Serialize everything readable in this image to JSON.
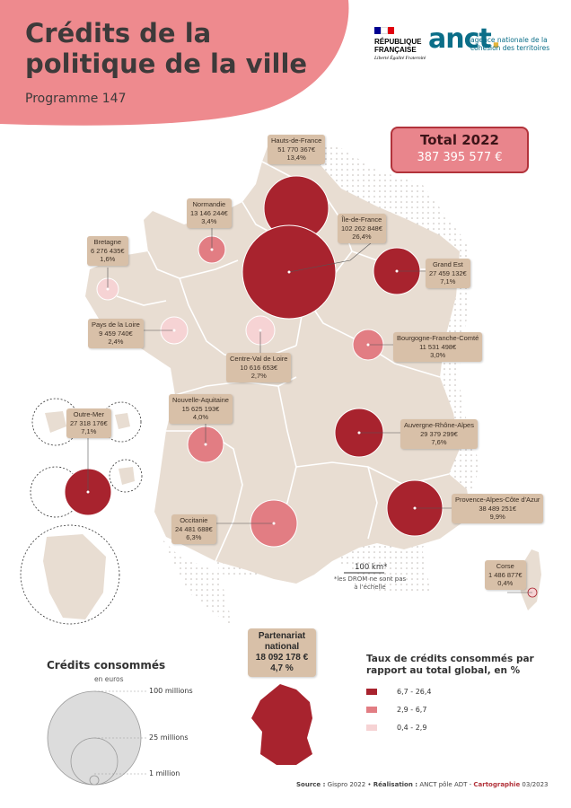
{
  "header": {
    "title": "Crédits de la politique de la ville",
    "subtitle": "Programme 147"
  },
  "logos": {
    "rf_name": "RÉPUBLIQUE FRANÇAISE",
    "rf_motto": "Liberté Égalité Fraternité",
    "anct_logo": "anct",
    "anct_text": "agence nationale de la cohésion des territoires"
  },
  "total": {
    "label": "Total 2022",
    "value": "387 395 577 €"
  },
  "regions": [
    {
      "name": "Hauts-de-France",
      "amount": "51 770 367€",
      "pct": "13,4%",
      "class": "high"
    },
    {
      "name": "Normandie",
      "amount": "13 146 244€",
      "pct": "3,4%",
      "class": "mid"
    },
    {
      "name": "Île-de-France",
      "amount": "102 262 848€",
      "pct": "26,4%",
      "class": "high"
    },
    {
      "name": "Bretagne",
      "amount": "6 276 435€",
      "pct": "1,6%",
      "class": "low"
    },
    {
      "name": "Grand Est",
      "amount": "27 459 132€",
      "pct": "7,1%",
      "class": "high"
    },
    {
      "name": "Pays de la Loire",
      "amount": "9 459 740€",
      "pct": "2,4%",
      "class": "low"
    },
    {
      "name": "Bourgogne-Franche-Comté",
      "amount": "11 531 498€",
      "pct": "3,0%",
      "class": "mid"
    },
    {
      "name": "Centre-Val de Loire",
      "amount": "10 616 653€",
      "pct": "2,7%",
      "class": "low"
    },
    {
      "name": "Nouvelle-Aquitaine",
      "amount": "15 625 193€",
      "pct": "4,0%",
      "class": "mid"
    },
    {
      "name": "Outre-Mer",
      "amount": "27 318 176€",
      "pct": "7,1%",
      "class": "high"
    },
    {
      "name": "Auvergne-Rhône-Alpes",
      "amount": "29 379 299€",
      "pct": "7,6%",
      "class": "high"
    },
    {
      "name": "Provence-Alpes-Côte d'Azur",
      "amount": "38 489 251€",
      "pct": "9,9%",
      "class": "high"
    },
    {
      "name": "Occitanie",
      "amount": "24 481 688€",
      "pct": "6,3%",
      "class": "mid"
    },
    {
      "name": "Corse",
      "amount": "1 486 877€",
      "pct": "0,4%",
      "class": "low"
    }
  ],
  "scale": {
    "label": "100 km*",
    "note": "*les DROM ne sont pas à l'échelle"
  },
  "partenariat": {
    "line1": "Partenariat",
    "line2": "national",
    "amount": "18 092 178 €",
    "pct": "4,7 %"
  },
  "size_legend": {
    "title": "Crédits consommés",
    "unit": "en euros",
    "values": [
      "100 millions",
      "25 millions",
      "1 million"
    ]
  },
  "color_legend": {
    "title": "Taux de crédits consommés par rapport au total global, en %",
    "classes": [
      {
        "label": "6,7 - 26,4",
        "color": "#a8232e"
      },
      {
        "label": "2,9 - 6,7",
        "color": "#e27d83"
      },
      {
        "label": "0,4 - 2,9",
        "color": "#f6d3d4"
      }
    ]
  },
  "colors": {
    "high": "#a8232e",
    "mid": "#e27d83",
    "low": "#f6d3d4",
    "land": "#e8ddd2",
    "border": "#ffffff",
    "header": "#ee8a8e"
  },
  "source": {
    "source_label": "Source :",
    "source_value": "Gispro 2022",
    "real_label": "Réalisation :",
    "real_value": "ANCT pôle ADT -",
    "carto_label": "Cartographie",
    "carto_value": "03/2023"
  }
}
